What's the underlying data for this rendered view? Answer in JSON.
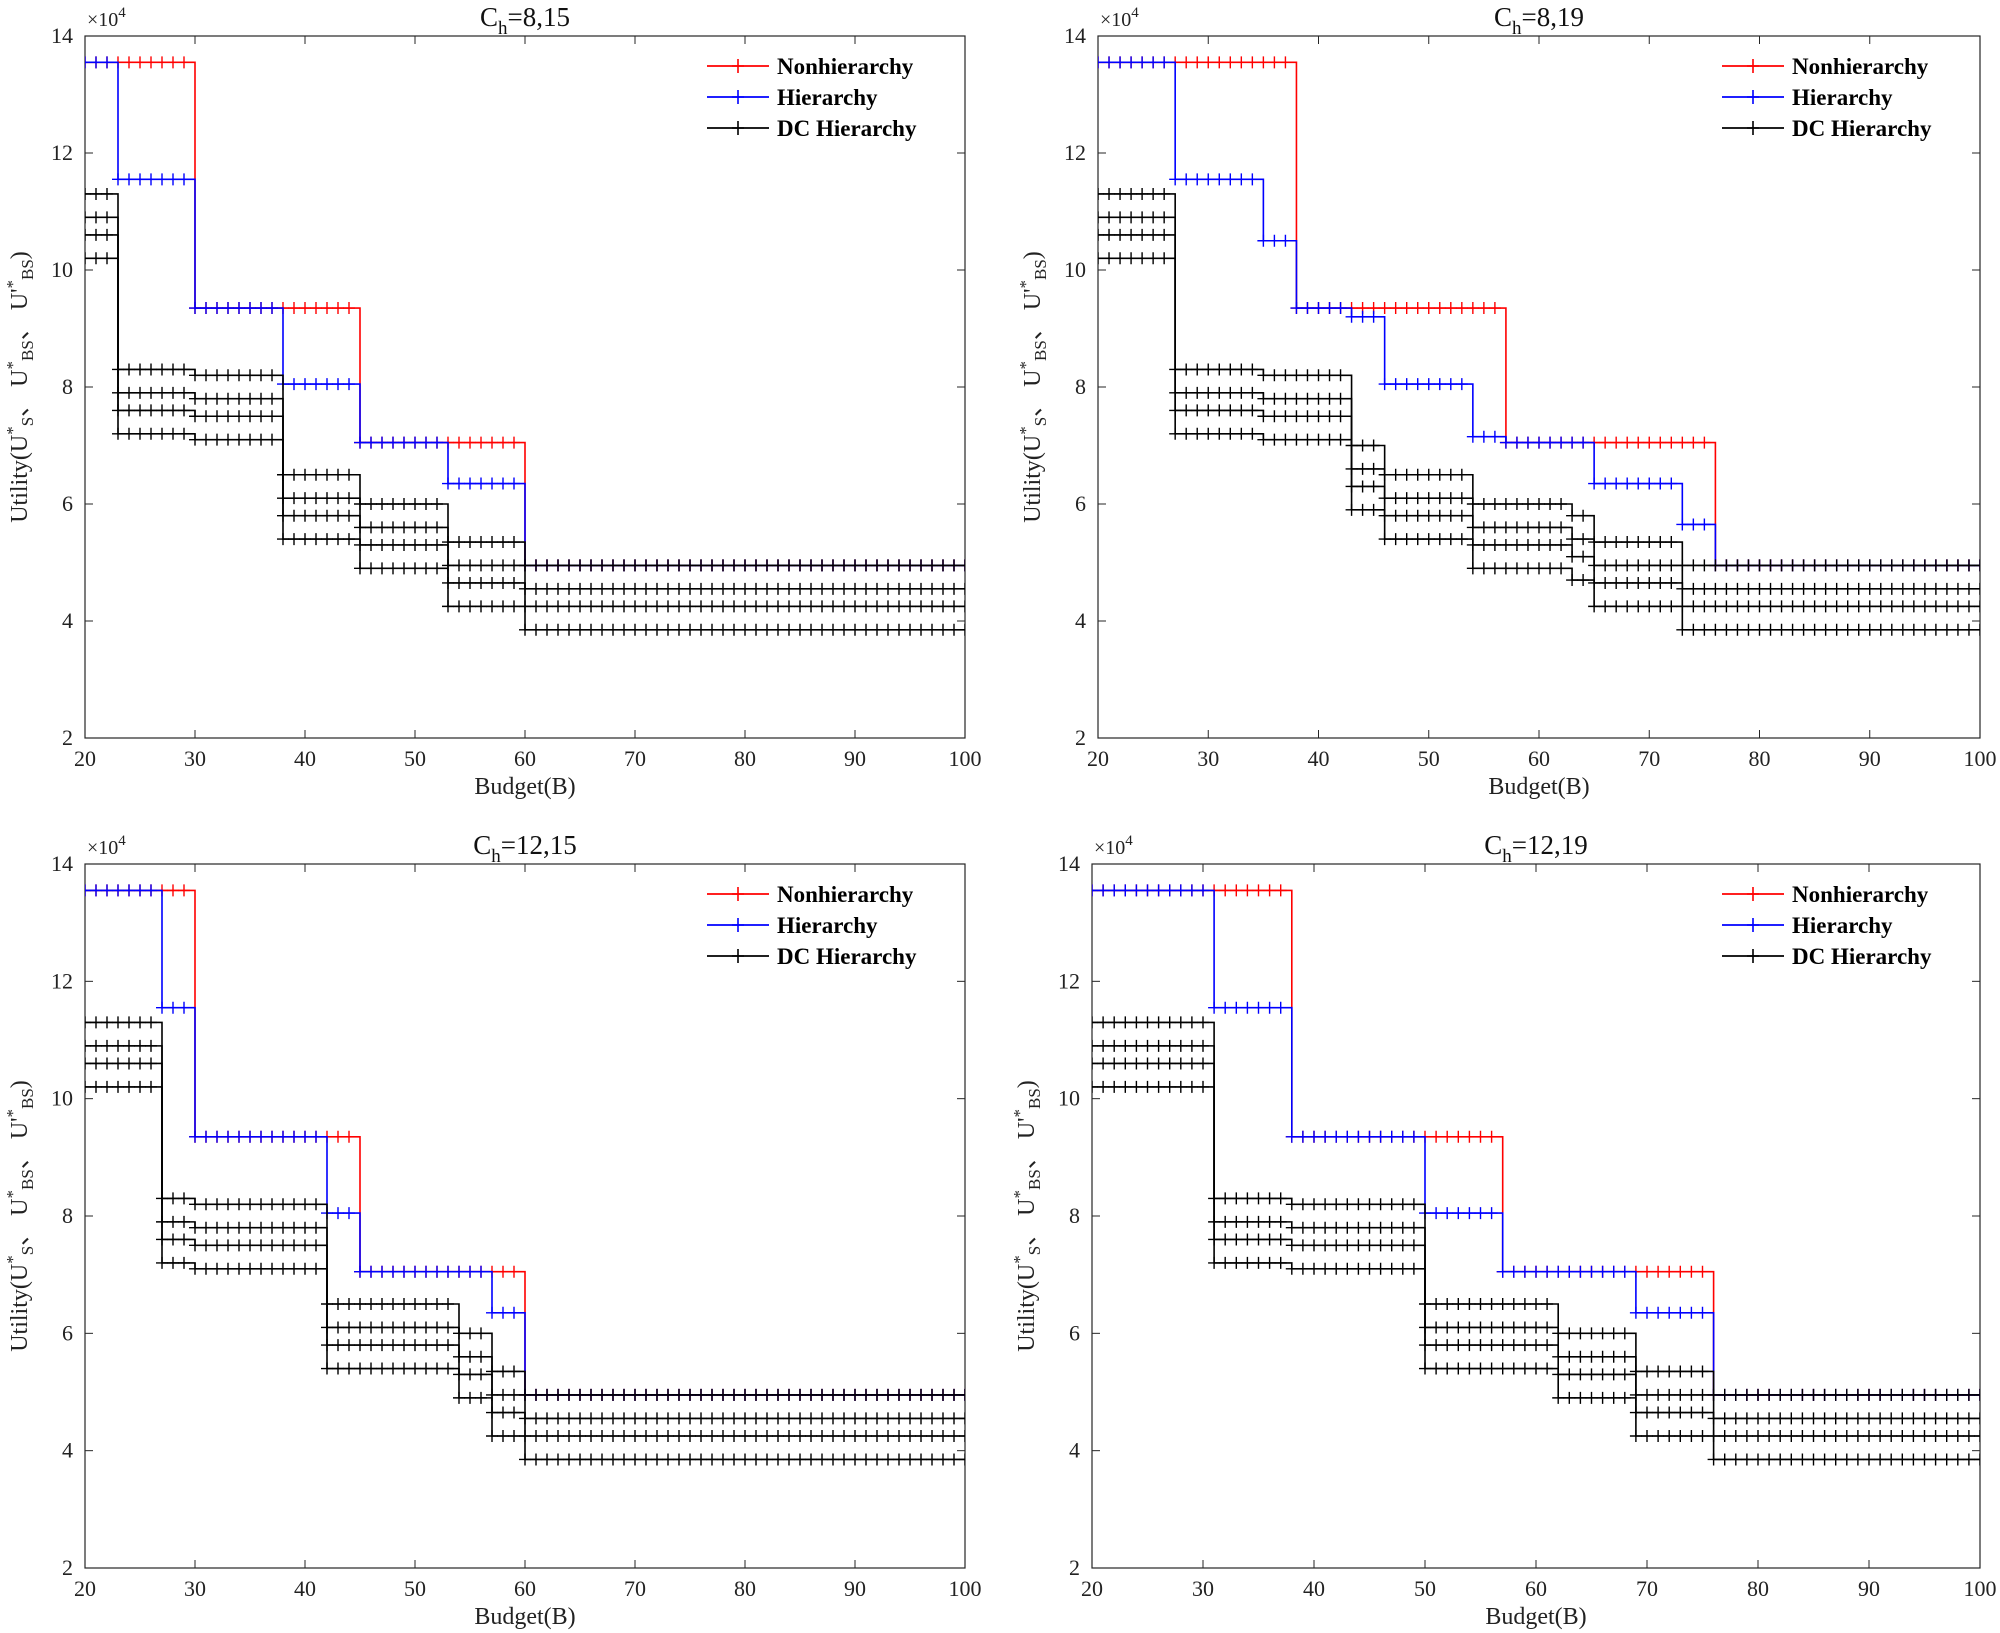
{
  "figure": {
    "colors": {
      "Nonhierarchy": "#ff0000",
      "Hierarchy": "#0000ff",
      "DC Hierarchy": "#000000"
    }
  },
  "chart_data": [
    {
      "type": "line",
      "title": "C_h=8,15",
      "title_base": "C",
      "title_sub": "h",
      "title_rest": "=8,15",
      "xlabel": "Budget(B)",
      "ylabel_parts": [
        "Utility(U",
        "*",
        "S",
        "、 U",
        "*",
        "BS",
        "、 U'",
        "*",
        "BS",
        ")"
      ],
      "exponent_label": "×10",
      "exponent_power": "4",
      "xlim": [
        20,
        100
      ],
      "ylim": [
        2,
        14
      ],
      "xticks": [
        20,
        30,
        40,
        50,
        60,
        70,
        80,
        90,
        100
      ],
      "yticks": [
        2,
        4,
        6,
        8,
        10,
        12,
        14
      ],
      "legend": {
        "location": "top-right",
        "entries": [
          "Nonhierarchy",
          "Hierarchy",
          "DC Hierarchy"
        ]
      },
      "series": [
        {
          "name": "Nonhierarchy",
          "steps": [
            [
              20,
              13.55
            ],
            [
              30,
              9.35
            ],
            [
              45,
              7.05
            ],
            [
              60,
              4.95
            ],
            [
              100,
              4.95
            ]
          ]
        },
        {
          "name": "Hierarchy",
          "steps": [
            [
              20,
              13.55
            ],
            [
              23,
              11.55
            ],
            [
              30,
              9.35
            ],
            [
              38,
              8.05
            ],
            [
              45,
              7.05
            ],
            [
              53,
              6.35
            ],
            [
              60,
              4.95
            ],
            [
              100,
              4.95
            ]
          ]
        },
        {
          "name": "DC Hierarchy",
          "band": [
            0.15,
            0.55,
            0.85,
            1.25
          ],
          "steps": [
            [
              20,
              10.05
            ],
            [
              23,
              7.05
            ],
            [
              30,
              6.95
            ],
            [
              38,
              5.25
            ],
            [
              45,
              4.75
            ],
            [
              53,
              4.1
            ],
            [
              60,
              3.7
            ],
            [
              100,
              3.7
            ]
          ]
        }
      ]
    },
    {
      "type": "line",
      "title": "C_h=8,19",
      "title_base": "C",
      "title_sub": "h",
      "title_rest": "=8,19",
      "xlabel": "Budget(B)",
      "ylabel_parts": [
        "Utility(U",
        "*",
        "S",
        "、 U",
        "*",
        "BS",
        "、 U'",
        "*",
        "BS",
        ")"
      ],
      "exponent_label": "×10",
      "exponent_power": "4",
      "xlim": [
        20,
        100
      ],
      "ylim": [
        2,
        14
      ],
      "xticks": [
        20,
        30,
        40,
        50,
        60,
        70,
        80,
        90,
        100
      ],
      "yticks": [
        2,
        4,
        6,
        8,
        10,
        12,
        14
      ],
      "legend": {
        "location": "top-right",
        "entries": [
          "Nonhierarchy",
          "Hierarchy",
          "DC Hierarchy"
        ]
      },
      "series": [
        {
          "name": "Nonhierarchy",
          "steps": [
            [
              20,
              13.55
            ],
            [
              38,
              9.35
            ],
            [
              57,
              7.05
            ],
            [
              76,
              4.95
            ],
            [
              100,
              4.95
            ]
          ]
        },
        {
          "name": "Hierarchy",
          "steps": [
            [
              20,
              13.55
            ],
            [
              27,
              11.55
            ],
            [
              35,
              10.5
            ],
            [
              38,
              9.35
            ],
            [
              43,
              9.2
            ],
            [
              46,
              8.05
            ],
            [
              54,
              7.15
            ],
            [
              57,
              7.05
            ],
            [
              65,
              6.35
            ],
            [
              73,
              5.65
            ],
            [
              76,
              4.95
            ],
            [
              100,
              4.95
            ]
          ]
        },
        {
          "name": "DC Hierarchy",
          "band": [
            0.15,
            0.55,
            0.85,
            1.25
          ],
          "steps": [
            [
              20,
              10.05
            ],
            [
              27,
              7.05
            ],
            [
              35,
              6.95
            ],
            [
              43,
              5.75
            ],
            [
              46,
              5.25
            ],
            [
              54,
              4.75
            ],
            [
              63,
              4.55
            ],
            [
              65,
              4.1
            ],
            [
              73,
              3.7
            ],
            [
              100,
              3.7
            ]
          ]
        }
      ]
    },
    {
      "type": "line",
      "title": "C_h=12,15",
      "title_base": "C",
      "title_sub": "h",
      "title_rest": "=12,15",
      "xlabel": "Budget(B)",
      "ylabel_parts": [
        "Utility(U",
        "*",
        "S",
        "、 U",
        "*",
        "BS",
        "、 U'",
        "*",
        "BS",
        ")"
      ],
      "exponent_label": "×10",
      "exponent_power": "4",
      "xlim": [
        20,
        100
      ],
      "ylim": [
        2,
        14
      ],
      "xticks": [
        20,
        30,
        40,
        50,
        60,
        70,
        80,
        90,
        100
      ],
      "yticks": [
        2,
        4,
        6,
        8,
        10,
        12,
        14
      ],
      "legend": {
        "location": "top-right",
        "entries": [
          "Nonhierarchy",
          "Hierarchy",
          "DC Hierarchy"
        ]
      },
      "series": [
        {
          "name": "Nonhierarchy",
          "steps": [
            [
              20,
              13.55
            ],
            [
              27,
              13.55
            ],
            [
              30,
              9.35
            ],
            [
              45,
              7.05
            ],
            [
              60,
              4.95
            ],
            [
              100,
              4.95
            ]
          ]
        },
        {
          "name": "Hierarchy",
          "steps": [
            [
              20,
              13.55
            ],
            [
              27,
              11.55
            ],
            [
              30,
              9.35
            ],
            [
              42,
              8.05
            ],
            [
              45,
              7.05
            ],
            [
              57,
              6.35
            ],
            [
              60,
              4.95
            ],
            [
              100,
              4.95
            ]
          ]
        },
        {
          "name": "DC Hierarchy",
          "band": [
            0.15,
            0.55,
            0.85,
            1.25
          ],
          "steps": [
            [
              20,
              10.05
            ],
            [
              27,
              7.05
            ],
            [
              30,
              6.95
            ],
            [
              42,
              5.25
            ],
            [
              54,
              4.75
            ],
            [
              57,
              4.1
            ],
            [
              60,
              3.7
            ],
            [
              100,
              3.7
            ]
          ]
        }
      ]
    },
    {
      "type": "line",
      "title": "C_h=12,19",
      "title_base": "C",
      "title_sub": "h",
      "title_rest": "=12,19",
      "xlabel": "Budget(B)",
      "ylabel_parts": [
        "Utility(U",
        "*",
        "S",
        "、 U",
        "*",
        "BS",
        "、 U'",
        "*",
        "BS",
        ")"
      ],
      "exponent_label": "×10",
      "exponent_power": "4",
      "xlim": [
        20,
        100
      ],
      "ylim": [
        2,
        14
      ],
      "xticks": [
        20,
        30,
        40,
        50,
        60,
        70,
        80,
        90,
        100
      ],
      "yticks": [
        2,
        4,
        6,
        8,
        10,
        12,
        14
      ],
      "legend": {
        "location": "top-right",
        "entries": [
          "Nonhierarchy",
          "Hierarchy",
          "DC Hierarchy"
        ]
      },
      "series": [
        {
          "name": "Nonhierarchy",
          "steps": [
            [
              20,
              13.55
            ],
            [
              38,
              9.35
            ],
            [
              57,
              7.05
            ],
            [
              76,
              4.95
            ],
            [
              100,
              4.95
            ]
          ]
        },
        {
          "name": "Hierarchy",
          "steps": [
            [
              20,
              13.55
            ],
            [
              31,
              11.55
            ],
            [
              38,
              9.35
            ],
            [
              50,
              8.05
            ],
            [
              57,
              7.05
            ],
            [
              69,
              6.35
            ],
            [
              76,
              4.95
            ],
            [
              100,
              4.95
            ]
          ]
        },
        {
          "name": "DC Hierarchy",
          "band": [
            0.15,
            0.55,
            0.85,
            1.25
          ],
          "steps": [
            [
              20,
              10.05
            ],
            [
              31,
              7.05
            ],
            [
              38,
              6.95
            ],
            [
              50,
              5.25
            ],
            [
              62,
              4.75
            ],
            [
              69,
              4.1
            ],
            [
              76,
              3.7
            ],
            [
              100,
              3.7
            ]
          ]
        }
      ]
    }
  ]
}
